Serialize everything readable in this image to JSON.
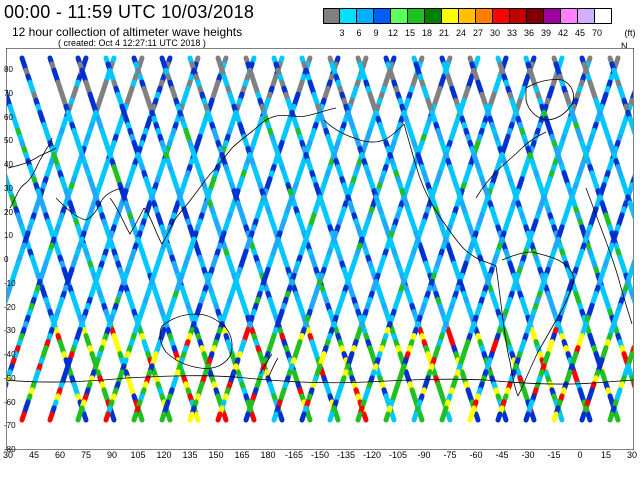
{
  "header": {
    "title": "00:00 - 11:59 UTC 10/03/2018",
    "subtitle": "12 hour collection of altimeter wave heights",
    "created": "( created: Oct  4 12:27:11 UTC 2018 )"
  },
  "scale": {
    "unit": "(ft)",
    "colors": [
      "#808080",
      "#00e0ff",
      "#00b0ff",
      "#0060ff",
      "#60ff60",
      "#20c020",
      "#008000",
      "#ffff00",
      "#ffc000",
      "#ff8000",
      "#ff0000",
      "#c00000",
      "#800000",
      "#a000a0",
      "#ff80ff",
      "#d0b0ff",
      "#ffffff"
    ],
    "labels": [
      "3",
      "6",
      "9",
      "12",
      "15",
      "18",
      "21",
      "24",
      "27",
      "30",
      "33",
      "36",
      "39",
      "42",
      "45",
      "70"
    ]
  },
  "map": {
    "longitude_labels": [
      "30",
      "45",
      "60",
      "75",
      "90",
      "105",
      "120",
      "135",
      "150",
      "165",
      "180",
      "-165",
      "-150",
      "-135",
      "-120",
      "-105",
      "-90",
      "-75",
      "-60",
      "-45",
      "-30",
      "-15",
      "0",
      "15",
      "30"
    ],
    "latitude_labels": [
      "80",
      "70",
      "60",
      "50",
      "40",
      "30",
      "20",
      "10",
      "0",
      "-10",
      "-20",
      "-30",
      "-40",
      "-50",
      "-60",
      "-70",
      "-80"
    ],
    "passes_description_colors": {
      "low": "#0030d0",
      "mid": "#00c8ff",
      "mid2": "#20a8ff",
      "high": "#20c020",
      "veryhigh": "#ffff00",
      "extreme": "#ff0000",
      "ice": "#808080"
    }
  }
}
